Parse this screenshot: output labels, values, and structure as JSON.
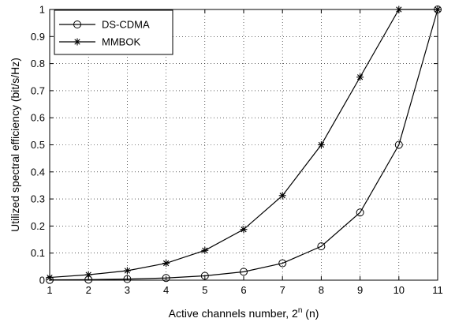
{
  "chart_data": {
    "type": "line",
    "xlabel_prefix": "Active channels number, 2",
    "xlabel_sup": "n",
    "xlabel_suffix": " (n)",
    "ylabel": "Utilized spectral efficiency (bit/s/Hz)",
    "xlim": [
      1,
      11
    ],
    "ylim": [
      0,
      1
    ],
    "x": [
      1,
      2,
      3,
      4,
      5,
      6,
      7,
      8,
      9,
      10,
      11
    ],
    "x_ticks": [
      "1",
      "2",
      "3",
      "4",
      "5",
      "6",
      "7",
      "8",
      "9",
      "10",
      "11"
    ],
    "y_ticks": [
      "0",
      "0.1",
      "0.2",
      "0.3",
      "0.4",
      "0.5",
      "0.6",
      "0.7",
      "0.8",
      "0.9",
      "1"
    ],
    "grid": true,
    "legend_position": "top-left",
    "series": [
      {
        "name": "DS-CDMA",
        "marker": "circle",
        "color": "#000000",
        "values": [
          0.001,
          0.002,
          0.004,
          0.008,
          0.016,
          0.031,
          0.0625,
          0.125,
          0.25,
          0.5,
          1.0
        ]
      },
      {
        "name": "MMBOK",
        "marker": "star",
        "color": "#000000",
        "values": [
          0.01,
          0.02,
          0.035,
          0.0625,
          0.11,
          0.1875,
          0.3125,
          0.5,
          0.75,
          1.0,
          1.0
        ]
      }
    ]
  }
}
